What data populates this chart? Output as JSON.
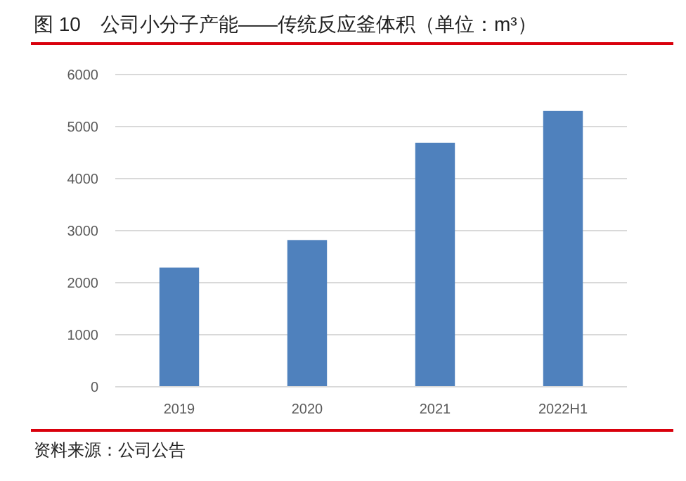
{
  "chart_data": {
    "type": "bar",
    "title": "图 10　公司小分子产能——传统反应釜体积（单位：m³）",
    "categories": [
      "2019",
      "2020",
      "2021",
      "2022H1"
    ],
    "values": [
      2290,
      2820,
      4690,
      5300
    ],
    "color": "#4f81bd",
    "ylim": [
      0,
      6000
    ],
    "yticks": [
      0,
      1000,
      2000,
      3000,
      4000,
      5000,
      6000
    ],
    "grid": "y",
    "annotations": [
      "资料来源：公司公告"
    ]
  }
}
